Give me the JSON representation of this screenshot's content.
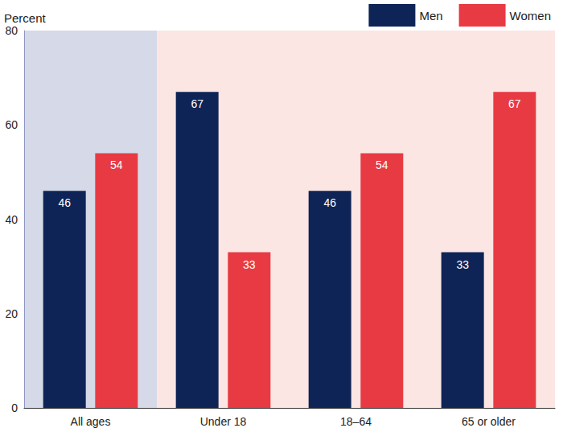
{
  "chart_data": {
    "type": "bar",
    "ylabel": "Percent",
    "categories": [
      "All ages",
      "Under 18",
      "18–64",
      "65 or older"
    ],
    "series": [
      {
        "name": "Men",
        "color": "#0e2456",
        "values": [
          46,
          67,
          46,
          33
        ]
      },
      {
        "name": "Women",
        "color": "#e83a43",
        "values": [
          54,
          33,
          54,
          67
        ]
      }
    ],
    "ylim": [
      0,
      80
    ],
    "yticks": [
      0,
      20,
      40,
      60,
      80
    ],
    "grid": true,
    "legend": "top right",
    "data_labels": true
  }
}
